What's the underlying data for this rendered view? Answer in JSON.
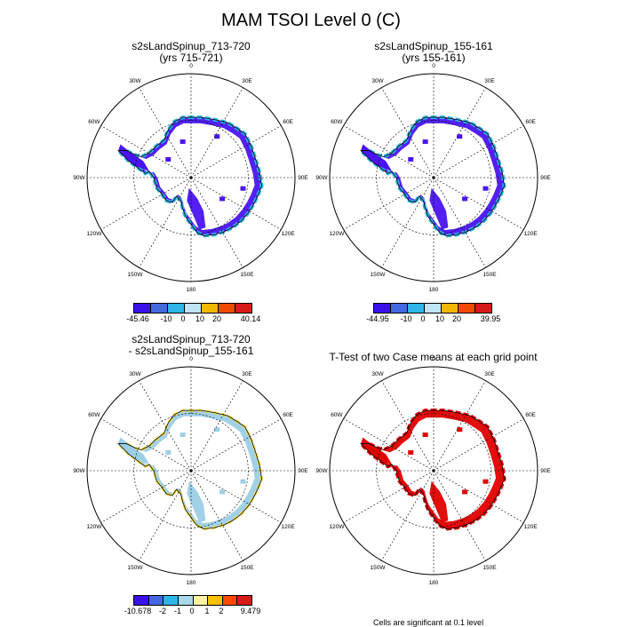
{
  "main_title": "MAM TSOI Level 0 (C)",
  "panels": [
    {
      "title_line1": "s2sLandSpinup_713-720",
      "title_line2": "(yrs 715-721)",
      "type": "field"
    },
    {
      "title_line1": "s2sLandSpinup_155-161",
      "title_line2": "(yrs 155-161)",
      "type": "field"
    },
    {
      "title_line1": "s2sLandSpinup_713-720",
      "title_line2": "- s2sLandSpinup_155-161",
      "type": "difference"
    },
    {
      "title_line1": "T-Test of two Case means at each grid point",
      "title_line2": "",
      "type": "significance"
    }
  ],
  "longitude_labels": [
    "0",
    "30E",
    "60E",
    "90E",
    "120E",
    "150E",
    "180",
    "150W",
    "120W",
    "90W",
    "60W",
    "30W"
  ],
  "legends": {
    "panel1": {
      "min": "-45.46",
      "ticks": [
        "-10",
        "0",
        "10",
        "20"
      ],
      "max": "40.14",
      "colors": [
        "#3a12e8",
        "#4468e0",
        "#2fb6e8",
        "#bfe4f2",
        "#f5b800",
        "#f24a00",
        "#d61a1a"
      ]
    },
    "panel2": {
      "min": "-44.95",
      "ticks": [
        "-10",
        "0",
        "10",
        "20"
      ],
      "max": "39.95",
      "colors": [
        "#3a12e8",
        "#4468e0",
        "#2fb6e8",
        "#bfe4f2",
        "#f5b800",
        "#f24a00",
        "#d61a1a"
      ]
    },
    "panel3": {
      "min": "-10.678",
      "ticks": [
        "-2",
        "-1",
        "0",
        "1",
        "2"
      ],
      "max": "9.479",
      "colors": [
        "#3a12e8",
        "#4468e0",
        "#2fb6e8",
        "#a8d8ea",
        "#fff2a0",
        "#f5c400",
        "#ff4a00",
        "#d61a1a"
      ]
    }
  },
  "field_colors": {
    "cold": "#4a14f0",
    "ocean_edge": "#2fb6e8",
    "diff_pos": "#fbe24a",
    "diff_neg": "#9ccfe6",
    "significant": "#e00000"
  },
  "note": "Cells are significant at 0.1 level"
}
